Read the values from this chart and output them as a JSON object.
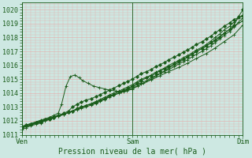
{
  "title": "Pression niveau de la mer( hPa )",
  "xlabel_ticks": [
    "Ven",
    "Sam",
    "Dim"
  ],
  "xlabel_tick_positions": [
    0,
    1,
    2
  ],
  "ylim": [
    1011.0,
    1020.5
  ],
  "yticks": [
    1011,
    1012,
    1013,
    1014,
    1015,
    1016,
    1017,
    1018,
    1019,
    1020
  ],
  "bg_color": "#cde8e2",
  "grid_color": "#e8a8a8",
  "line_color": "#1a5c1a",
  "marker_color": "#1a5c1a",
  "title_color": "#1a5c1a",
  "tick_color": "#1a5c1a",
  "lines": [
    {
      "x": [
        0.0,
        0.04,
        0.08,
        0.13,
        0.17,
        0.21,
        0.25,
        0.29,
        0.33,
        0.38,
        0.42,
        0.46,
        0.5,
        0.54,
        0.58,
        0.63,
        0.67,
        0.71,
        0.75,
        0.79,
        0.83,
        0.88,
        0.92,
        0.96,
        1.0,
        1.04,
        1.08,
        1.13,
        1.17,
        1.21,
        1.25,
        1.29,
        1.33,
        1.38,
        1.42,
        1.46,
        1.5,
        1.54,
        1.58,
        1.63,
        1.67,
        1.71,
        1.75,
        1.79,
        1.83,
        1.88,
        1.92,
        1.96,
        2.0
      ],
      "y": [
        1011.6,
        1011.7,
        1011.8,
        1011.9,
        1012.0,
        1012.1,
        1012.2,
        1012.3,
        1012.4,
        1012.5,
        1012.6,
        1012.7,
        1012.9,
        1013.0,
        1013.1,
        1013.2,
        1013.3,
        1013.5,
        1013.6,
        1013.8,
        1013.9,
        1014.1,
        1014.2,
        1014.35,
        1014.5,
        1014.7,
        1014.9,
        1015.1,
        1015.25,
        1015.4,
        1015.6,
        1015.75,
        1015.9,
        1016.1,
        1016.3,
        1016.45,
        1016.6,
        1016.8,
        1017.0,
        1017.2,
        1017.4,
        1017.6,
        1017.8,
        1018.0,
        1018.3,
        1018.6,
        1018.9,
        1019.5,
        1020.0
      ],
      "marker": "D",
      "ms": 2.0
    },
    {
      "x": [
        0.0,
        0.04,
        0.08,
        0.13,
        0.17,
        0.21,
        0.25,
        0.29,
        0.33,
        0.38,
        0.42,
        0.46,
        0.5,
        0.54,
        0.58,
        0.63,
        0.67,
        0.71,
        0.75,
        0.79,
        0.83,
        0.88,
        0.92,
        0.96,
        1.0,
        1.04,
        1.08,
        1.13,
        1.17,
        1.21,
        1.25,
        1.29,
        1.33,
        1.38,
        1.42,
        1.46,
        1.5,
        1.54,
        1.58,
        1.63,
        1.67,
        1.71,
        1.75,
        1.79,
        1.83,
        1.88,
        1.92,
        1.96,
        2.0
      ],
      "y": [
        1011.5,
        1011.6,
        1011.7,
        1011.85,
        1011.95,
        1012.05,
        1012.15,
        1012.25,
        1012.35,
        1012.45,
        1012.6,
        1012.7,
        1012.8,
        1012.9,
        1013.0,
        1013.15,
        1013.25,
        1013.4,
        1013.55,
        1013.7,
        1013.85,
        1014.0,
        1014.15,
        1014.3,
        1014.45,
        1014.6,
        1014.75,
        1014.9,
        1015.1,
        1015.25,
        1015.4,
        1015.55,
        1015.7,
        1015.9,
        1016.1,
        1016.25,
        1016.4,
        1016.6,
        1016.8,
        1017.0,
        1017.2,
        1017.4,
        1017.65,
        1017.9,
        1018.15,
        1018.45,
        1018.75,
        1019.1,
        1019.4
      ],
      "marker": "+",
      "ms": 3.0
    },
    {
      "x": [
        0.0,
        0.04,
        0.08,
        0.13,
        0.17,
        0.21,
        0.25,
        0.29,
        0.33,
        0.38,
        0.42,
        0.46,
        0.5,
        0.54,
        0.58,
        0.63,
        0.67,
        0.71,
        0.75,
        0.79,
        0.83,
        0.88,
        0.92,
        0.96,
        1.0,
        1.04,
        1.08,
        1.13,
        1.17,
        1.21,
        1.25,
        1.29,
        1.33,
        1.38,
        1.42,
        1.46,
        1.5,
        1.54,
        1.58,
        1.63,
        1.67,
        1.71,
        1.75,
        1.79,
        1.83,
        1.88,
        1.92,
        1.96,
        2.0
      ],
      "y": [
        1011.4,
        1011.5,
        1011.65,
        1011.75,
        1011.85,
        1012.0,
        1012.1,
        1012.2,
        1012.35,
        1012.45,
        1012.6,
        1012.7,
        1012.85,
        1013.0,
        1013.1,
        1013.25,
        1013.4,
        1013.55,
        1013.7,
        1013.85,
        1014.0,
        1014.15,
        1014.3,
        1014.45,
        1014.6,
        1014.8,
        1015.0,
        1015.15,
        1015.3,
        1015.5,
        1015.65,
        1015.8,
        1016.0,
        1016.2,
        1016.35,
        1016.55,
        1016.7,
        1016.9,
        1017.1,
        1017.3,
        1017.5,
        1017.75,
        1018.0,
        1018.25,
        1018.55,
        1018.8,
        1019.1,
        1019.4,
        1019.6
      ],
      "marker": "+",
      "ms": 3.0
    },
    {
      "x": [
        0.0,
        0.08,
        0.17,
        0.25,
        0.29,
        0.33,
        0.38,
        0.42,
        0.46,
        0.5,
        0.54,
        0.58,
        0.63,
        0.67,
        0.71,
        0.75,
        0.79,
        0.83,
        0.88,
        0.92,
        0.96,
        1.0,
        1.04,
        1.08,
        1.13,
        1.17,
        1.21,
        1.25,
        1.29,
        1.33,
        1.38,
        1.42,
        1.46,
        1.5,
        1.54,
        1.58,
        1.63,
        1.67,
        1.71,
        1.75,
        1.79,
        1.83,
        1.88,
        1.92,
        2.0
      ],
      "y": [
        1011.5,
        1011.7,
        1011.9,
        1012.1,
        1012.25,
        1012.4,
        1012.55,
        1012.7,
        1013.0,
        1013.2,
        1013.35,
        1013.5,
        1013.6,
        1013.75,
        1013.9,
        1014.05,
        1014.2,
        1014.35,
        1014.55,
        1014.7,
        1014.85,
        1015.0,
        1015.2,
        1015.4,
        1015.55,
        1015.7,
        1015.9,
        1016.05,
        1016.2,
        1016.4,
        1016.6,
        1016.75,
        1016.95,
        1017.1,
        1017.3,
        1017.5,
        1017.7,
        1017.9,
        1018.1,
        1018.35,
        1018.55,
        1018.8,
        1019.05,
        1019.3,
        1019.55
      ],
      "marker": "D",
      "ms": 2.0
    },
    {
      "x": [
        0.0,
        0.08,
        0.17,
        0.25,
        0.29,
        0.33,
        0.36,
        0.4,
        0.44,
        0.48,
        0.52,
        0.55,
        0.6,
        0.65,
        0.7,
        0.75,
        0.8,
        0.85,
        0.9,
        0.95,
        1.0,
        1.05,
        1.1,
        1.17,
        1.25,
        1.33,
        1.42,
        1.5,
        1.58,
        1.67,
        1.75,
        1.83,
        1.92,
        2.0
      ],
      "y": [
        1011.6,
        1011.8,
        1012.05,
        1012.25,
        1012.4,
        1012.55,
        1013.2,
        1014.5,
        1015.2,
        1015.3,
        1015.1,
        1014.9,
        1014.7,
        1014.5,
        1014.4,
        1014.3,
        1014.2,
        1014.15,
        1014.1,
        1014.15,
        1014.3,
        1014.5,
        1014.7,
        1015.0,
        1015.4,
        1015.8,
        1016.2,
        1016.6,
        1017.0,
        1017.4,
        1017.85,
        1018.3,
        1018.8,
        1019.2
      ],
      "marker": "+",
      "ms": 3.0
    },
    {
      "x": [
        0.0,
        0.08,
        0.17,
        0.25,
        0.33,
        0.42,
        0.5,
        0.58,
        0.67,
        0.75,
        0.83,
        0.92,
        1.0,
        1.08,
        1.17,
        1.25,
        1.33,
        1.42,
        1.5,
        1.58,
        1.67,
        1.75,
        1.83,
        1.92,
        2.0
      ],
      "y": [
        1011.55,
        1011.75,
        1011.95,
        1012.15,
        1012.35,
        1012.6,
        1012.85,
        1013.1,
        1013.35,
        1013.6,
        1013.85,
        1014.1,
        1014.35,
        1014.65,
        1014.95,
        1015.25,
        1015.55,
        1015.85,
        1016.15,
        1016.5,
        1016.85,
        1017.25,
        1017.7,
        1018.2,
        1018.9
      ],
      "marker": "+",
      "ms": 3.0
    }
  ]
}
